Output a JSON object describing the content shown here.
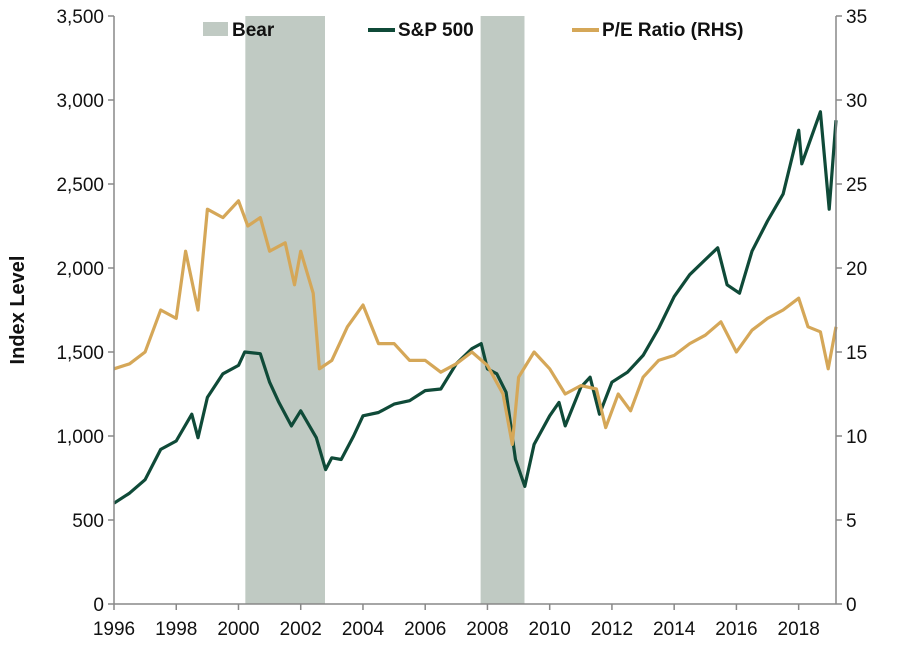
{
  "chart_data": {
    "type": "line",
    "ylabel": "Index Level",
    "x_range": [
      1996,
      2019.2
    ],
    "x_ticks": [
      "1996",
      "1998",
      "2000",
      "2002",
      "2004",
      "2006",
      "2008",
      "2010",
      "2012",
      "2014",
      "2016",
      "2018"
    ],
    "y_left": {
      "range": [
        0,
        3500
      ],
      "ticks": [
        "0",
        "500",
        "1,000",
        "1,500",
        "2,000",
        "2,500",
        "3,000",
        "3,500"
      ]
    },
    "y_right": {
      "range": [
        0,
        35
      ],
      "ticks": [
        "0",
        "5",
        "10",
        "15",
        "20",
        "25",
        "30",
        "35"
      ]
    },
    "legend": {
      "placement": "top-center"
    },
    "colors": {
      "bear": "#c0cac3",
      "sp500": "#0f4a38",
      "pe": "#d5a758"
    },
    "bear_periods": {
      "name": "Bear",
      "ranges": [
        [
          2000.22,
          2002.78
        ],
        [
          2007.78,
          2009.19
        ]
      ]
    },
    "series": [
      {
        "name": "S&P 500",
        "axis": "left",
        "points": [
          [
            1996.0,
            600
          ],
          [
            1996.5,
            660
          ],
          [
            1997.0,
            740
          ],
          [
            1997.5,
            920
          ],
          [
            1998.0,
            970
          ],
          [
            1998.5,
            1130
          ],
          [
            1998.7,
            990
          ],
          [
            1999.0,
            1230
          ],
          [
            1999.5,
            1370
          ],
          [
            2000.0,
            1420
          ],
          [
            2000.2,
            1500
          ],
          [
            2000.7,
            1490
          ],
          [
            2001.0,
            1320
          ],
          [
            2001.3,
            1200
          ],
          [
            2001.7,
            1060
          ],
          [
            2002.0,
            1150
          ],
          [
            2002.5,
            990
          ],
          [
            2002.8,
            800
          ],
          [
            2003.0,
            870
          ],
          [
            2003.3,
            860
          ],
          [
            2003.7,
            1000
          ],
          [
            2004.0,
            1120
          ],
          [
            2004.5,
            1140
          ],
          [
            2005.0,
            1190
          ],
          [
            2005.5,
            1210
          ],
          [
            2006.0,
            1270
          ],
          [
            2006.5,
            1280
          ],
          [
            2007.0,
            1430
          ],
          [
            2007.5,
            1520
          ],
          [
            2007.8,
            1550
          ],
          [
            2008.0,
            1400
          ],
          [
            2008.3,
            1370
          ],
          [
            2008.6,
            1260
          ],
          [
            2008.9,
            860
          ],
          [
            2009.2,
            700
          ],
          [
            2009.5,
            950
          ],
          [
            2010.0,
            1120
          ],
          [
            2010.3,
            1200
          ],
          [
            2010.5,
            1060
          ],
          [
            2011.0,
            1290
          ],
          [
            2011.3,
            1350
          ],
          [
            2011.6,
            1130
          ],
          [
            2012.0,
            1320
          ],
          [
            2012.5,
            1380
          ],
          [
            2013.0,
            1480
          ],
          [
            2013.5,
            1640
          ],
          [
            2014.0,
            1830
          ],
          [
            2014.5,
            1960
          ],
          [
            2015.0,
            2050
          ],
          [
            2015.4,
            2120
          ],
          [
            2015.7,
            1900
          ],
          [
            2016.1,
            1850
          ],
          [
            2016.5,
            2100
          ],
          [
            2017.0,
            2280
          ],
          [
            2017.5,
            2440
          ],
          [
            2018.0,
            2820
          ],
          [
            2018.1,
            2620
          ],
          [
            2018.7,
            2930
          ],
          [
            2018.98,
            2350
          ],
          [
            2019.2,
            2880
          ]
        ]
      },
      {
        "name": "P/E Ratio (RHS)",
        "axis": "right",
        "points": [
          [
            1996.0,
            14.0
          ],
          [
            1996.5,
            14.3
          ],
          [
            1997.0,
            15.0
          ],
          [
            1997.5,
            17.5
          ],
          [
            1998.0,
            17.0
          ],
          [
            1998.3,
            21.0
          ],
          [
            1998.7,
            17.5
          ],
          [
            1999.0,
            23.5
          ],
          [
            1999.5,
            23.0
          ],
          [
            2000.0,
            24.0
          ],
          [
            2000.3,
            22.5
          ],
          [
            2000.7,
            23.0
          ],
          [
            2001.0,
            21.0
          ],
          [
            2001.5,
            21.5
          ],
          [
            2001.8,
            19.0
          ],
          [
            2002.0,
            21.0
          ],
          [
            2002.4,
            18.5
          ],
          [
            2002.6,
            14.0
          ],
          [
            2003.0,
            14.5
          ],
          [
            2003.5,
            16.5
          ],
          [
            2004.0,
            17.8
          ],
          [
            2004.5,
            15.5
          ],
          [
            2005.0,
            15.5
          ],
          [
            2005.5,
            14.5
          ],
          [
            2006.0,
            14.5
          ],
          [
            2006.5,
            13.8
          ],
          [
            2007.0,
            14.3
          ],
          [
            2007.5,
            15.0
          ],
          [
            2008.0,
            14.2
          ],
          [
            2008.5,
            12.5
          ],
          [
            2008.8,
            9.5
          ],
          [
            2009.0,
            13.5
          ],
          [
            2009.5,
            15.0
          ],
          [
            2010.0,
            14.0
          ],
          [
            2010.5,
            12.5
          ],
          [
            2011.0,
            13.0
          ],
          [
            2011.5,
            12.8
          ],
          [
            2011.8,
            10.5
          ],
          [
            2012.2,
            12.5
          ],
          [
            2012.6,
            11.5
          ],
          [
            2013.0,
            13.5
          ],
          [
            2013.5,
            14.5
          ],
          [
            2014.0,
            14.8
          ],
          [
            2014.5,
            15.5
          ],
          [
            2015.0,
            16.0
          ],
          [
            2015.5,
            16.8
          ],
          [
            2016.0,
            15.0
          ],
          [
            2016.5,
            16.3
          ],
          [
            2017.0,
            17.0
          ],
          [
            2017.5,
            17.5
          ],
          [
            2018.0,
            18.2
          ],
          [
            2018.3,
            16.5
          ],
          [
            2018.7,
            16.2
          ],
          [
            2018.95,
            14.0
          ],
          [
            2019.2,
            16.5
          ]
        ]
      }
    ]
  }
}
